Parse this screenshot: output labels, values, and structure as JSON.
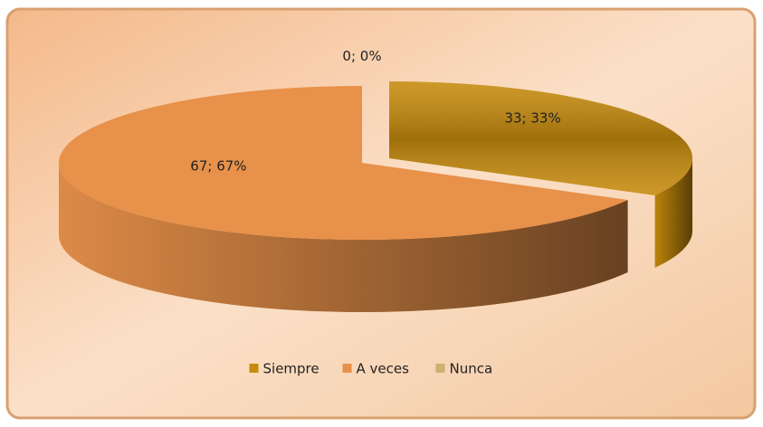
{
  "chart_data": {
    "type": "pie",
    "categories": [
      "Siempre",
      "A veces",
      "Nunca"
    ],
    "values": [
      33,
      67,
      0
    ],
    "value_labels": [
      "33; 33%",
      "67; 67%",
      "0; 0%"
    ],
    "colors": [
      "#c68a0c",
      "#e8914a",
      "#c9b36e"
    ],
    "legend": "bottom",
    "exploded": [
      true,
      false,
      false
    ]
  }
}
